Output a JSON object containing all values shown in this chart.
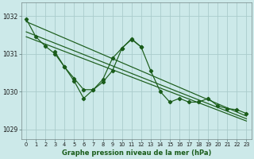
{
  "title": "Graphe pression niveau de la mer (hPa)",
  "background_color": "#cce9e9",
  "grid_color": "#aacccc",
  "line_color": "#1a5c1a",
  "xlim": [
    -0.5,
    23.5
  ],
  "ylim": [
    1028.75,
    1032.35
  ],
  "yticks": [
    1029,
    1030,
    1031,
    1032
  ],
  "xticks": [
    0,
    1,
    2,
    3,
    4,
    5,
    6,
    7,
    8,
    9,
    10,
    11,
    12,
    13,
    14,
    15,
    16,
    17,
    18,
    19,
    20,
    21,
    22,
    23
  ],
  "series_main": [
    1031.92,
    1031.45,
    1031.2,
    1031.0,
    1030.65,
    1030.35,
    1030.05,
    1030.05,
    1030.25,
    1030.55,
    1031.15,
    1031.38,
    1031.18,
    1030.55,
    1030.0,
    1029.72,
    1029.82,
    1029.72,
    1029.72,
    1029.82,
    1029.62,
    1029.55,
    1029.52,
    1029.42
  ],
  "series_jagged": [
    null,
    null,
    null,
    1031.05,
    1030.65,
    1030.28,
    1029.82,
    1030.05,
    1030.32,
    1030.88,
    1031.15,
    1031.4,
    1031.18,
    null,
    null,
    null,
    null,
    null,
    null,
    null,
    null,
    null,
    null,
    null
  ],
  "trend_lines": [
    {
      "x": [
        0,
        23
      ],
      "y": [
        1031.85,
        1029.35
      ]
    },
    {
      "x": [
        0,
        23
      ],
      "y": [
        1031.58,
        1029.28
      ]
    },
    {
      "x": [
        0,
        23
      ],
      "y": [
        1031.45,
        1029.22
      ]
    }
  ]
}
